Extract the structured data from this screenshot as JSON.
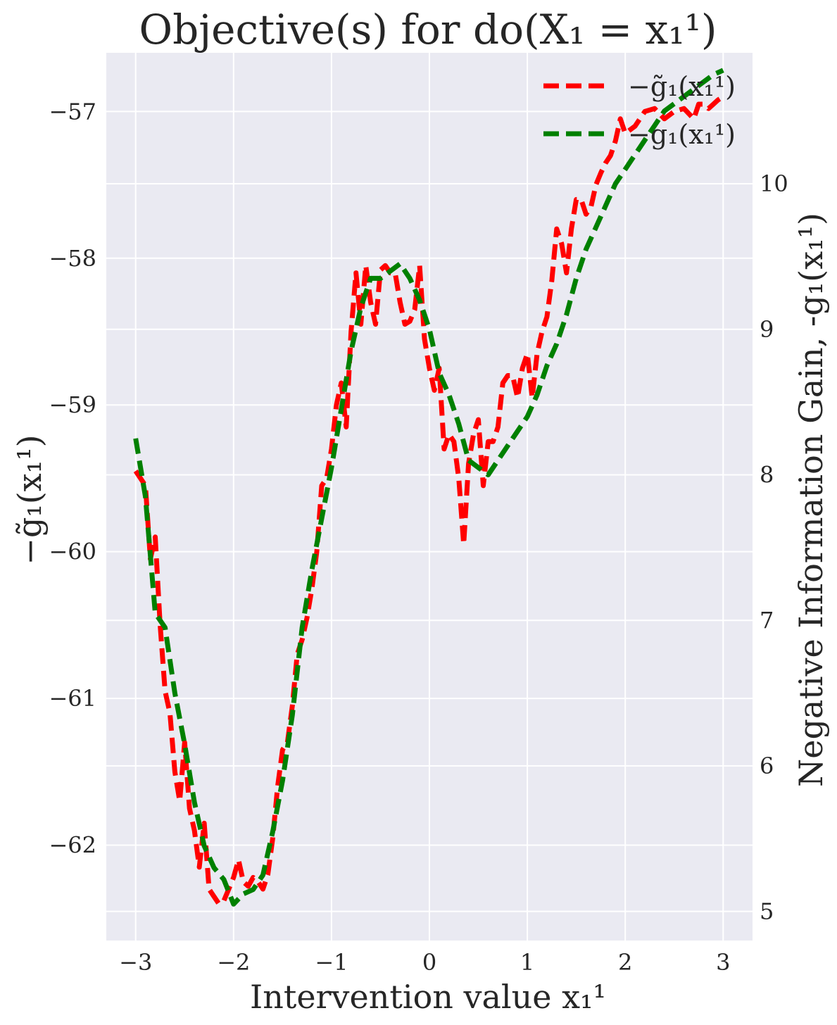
{
  "chart_data": {
    "type": "line",
    "title": "Objective(s) for do(X₁ = x₁¹)",
    "xlabel": "Intervention value x₁¹",
    "ylabel_left": "−g̃₁(x₁¹)",
    "ylabel_right": "Negative Information Gain, -g₁(x₁¹)",
    "xlim": [
      -3.3,
      3.3
    ],
    "ylim_left": [
      -62.65,
      -56.6
    ],
    "ylim_right": [
      4.8,
      10.9
    ],
    "x_ticks": [
      -3,
      -2,
      -1,
      0,
      1,
      2,
      3
    ],
    "x_tick_labels": [
      "−3",
      "−2",
      "−1",
      "0",
      "1",
      "2",
      "3"
    ],
    "y_left_ticks": [
      -62,
      -61,
      -60,
      -59,
      -58,
      -57
    ],
    "y_left_tick_labels": [
      "−62",
      "−61",
      "−60",
      "−59",
      "−58",
      "−57"
    ],
    "y_right_ticks": [
      5,
      6,
      7,
      8,
      9,
      10
    ],
    "y_right_tick_labels": [
      "5",
      "6",
      "7",
      "8",
      "9",
      "10"
    ],
    "grid": true,
    "legend_position": "top-right",
    "series": [
      {
        "name": "−g̃₁(x₁¹)",
        "axis": "left",
        "color": "#ff0000",
        "style": "dashed",
        "x": [
          -3.0,
          -2.9,
          -2.85,
          -2.8,
          -2.75,
          -2.7,
          -2.65,
          -2.6,
          -2.55,
          -2.5,
          -2.45,
          -2.4,
          -2.35,
          -2.3,
          -2.25,
          -2.2,
          -2.15,
          -2.1,
          -2.05,
          -2.0,
          -1.95,
          -1.9,
          -1.85,
          -1.8,
          -1.75,
          -1.7,
          -1.65,
          -1.6,
          -1.55,
          -1.5,
          -1.45,
          -1.4,
          -1.35,
          -1.3,
          -1.25,
          -1.2,
          -1.15,
          -1.1,
          -1.05,
          -1.0,
          -0.95,
          -0.9,
          -0.85,
          -0.8,
          -0.75,
          -0.7,
          -0.65,
          -0.6,
          -0.55,
          -0.5,
          -0.45,
          -0.4,
          -0.35,
          -0.3,
          -0.25,
          -0.2,
          -0.15,
          -0.1,
          -0.05,
          0.0,
          0.05,
          0.1,
          0.15,
          0.2,
          0.25,
          0.3,
          0.35,
          0.4,
          0.45,
          0.5,
          0.55,
          0.6,
          0.65,
          0.7,
          0.75,
          0.8,
          0.85,
          0.9,
          0.95,
          1.0,
          1.05,
          1.1,
          1.15,
          1.2,
          1.25,
          1.3,
          1.35,
          1.4,
          1.45,
          1.5,
          1.55,
          1.6,
          1.65,
          1.7,
          1.75,
          1.8,
          1.85,
          1.9,
          1.95,
          2.0,
          2.1,
          2.2,
          2.3,
          2.4,
          2.5,
          2.6,
          2.7,
          2.75,
          2.8,
          2.85,
          2.9,
          2.95,
          3.0
        ],
        "y": [
          -59.45,
          -59.55,
          -60.05,
          -59.9,
          -60.5,
          -60.95,
          -61.1,
          -61.5,
          -61.7,
          -61.3,
          -61.75,
          -61.9,
          -62.15,
          -61.85,
          -62.3,
          -62.35,
          -62.4,
          -62.38,
          -62.3,
          -62.22,
          -62.1,
          -62.25,
          -62.28,
          -62.22,
          -62.25,
          -62.3,
          -62.2,
          -61.95,
          -61.6,
          -61.35,
          -61.3,
          -61.05,
          -60.7,
          -60.6,
          -60.45,
          -60.25,
          -60.0,
          -59.55,
          -59.5,
          -59.3,
          -59.0,
          -58.85,
          -59.15,
          -58.5,
          -58.1,
          -58.45,
          -58.05,
          -58.3,
          -58.45,
          -58.08,
          -58.05,
          -58.1,
          -58.1,
          -58.3,
          -58.45,
          -58.43,
          -58.35,
          -58.05,
          -58.55,
          -58.75,
          -58.9,
          -58.75,
          -59.3,
          -59.2,
          -59.25,
          -59.5,
          -59.95,
          -59.4,
          -59.2,
          -59.1,
          -59.55,
          -59.25,
          -59.25,
          -59.15,
          -58.85,
          -58.8,
          -58.8,
          -58.95,
          -58.75,
          -58.65,
          -58.95,
          -58.65,
          -58.5,
          -58.4,
          -58.15,
          -57.8,
          -57.9,
          -58.1,
          -57.8,
          -57.6,
          -57.6,
          -57.7,
          -57.65,
          -57.5,
          -57.42,
          -57.35,
          -57.3,
          -57.2,
          -57.05,
          -57.15,
          -57.1,
          -57.0,
          -56.98,
          -57.05,
          -57.0,
          -56.98,
          -57.05,
          -56.95,
          -56.95,
          -56.98,
          -56.95,
          -56.92,
          -56.9
        ]
      },
      {
        "name": "−g₁(x₁¹)",
        "axis": "right",
        "color": "#008000",
        "style": "dashed",
        "x": [
          -3.0,
          -2.9,
          -2.8,
          -2.7,
          -2.6,
          -2.5,
          -2.4,
          -2.3,
          -2.2,
          -2.1,
          -2.0,
          -1.9,
          -1.8,
          -1.7,
          -1.6,
          -1.5,
          -1.4,
          -1.3,
          -1.2,
          -1.1,
          -1.0,
          -0.9,
          -0.8,
          -0.7,
          -0.6,
          -0.5,
          -0.4,
          -0.3,
          -0.2,
          -0.1,
          0.0,
          0.1,
          0.2,
          0.3,
          0.4,
          0.5,
          0.6,
          0.7,
          0.8,
          0.9,
          1.0,
          1.1,
          1.2,
          1.3,
          1.4,
          1.5,
          1.6,
          1.7,
          1.8,
          1.9,
          2.0,
          2.1,
          2.2,
          2.3,
          2.4,
          2.5,
          2.6,
          2.7,
          2.8,
          2.9,
          3.0
        ],
        "y": [
          8.25,
          7.85,
          7.05,
          6.95,
          6.5,
          6.15,
          5.75,
          5.45,
          5.3,
          5.22,
          5.05,
          5.12,
          5.15,
          5.25,
          5.55,
          5.9,
          6.35,
          6.95,
          7.35,
          7.7,
          8.05,
          8.45,
          8.85,
          9.15,
          9.35,
          9.35,
          9.4,
          9.45,
          9.35,
          9.2,
          9.0,
          8.7,
          8.55,
          8.35,
          8.1,
          8.05,
          8.0,
          8.1,
          8.2,
          8.3,
          8.4,
          8.55,
          8.75,
          8.9,
          9.1,
          9.35,
          9.55,
          9.7,
          9.85,
          10.0,
          10.1,
          10.2,
          10.3,
          10.4,
          10.5,
          10.55,
          10.6,
          10.65,
          10.7,
          10.75,
          10.78
        ]
      }
    ]
  }
}
